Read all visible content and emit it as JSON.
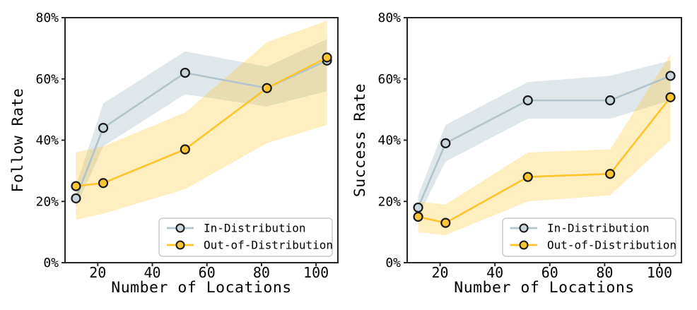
{
  "figure": {
    "background": "#ffffff",
    "text_color": "#000000",
    "spine_color": "#262626",
    "legend_border_color": "#cccccc",
    "legend_background": "rgba(255,255,255,0.92)"
  },
  "chart_data": [
    {
      "type": "line",
      "title": "",
      "xlabel": "Number of Locations",
      "ylabel": "Follow Rate",
      "x": [
        12,
        22,
        52,
        82,
        104
      ],
      "xlim": [
        8,
        108
      ],
      "ylim": [
        0,
        80
      ],
      "xticks": [
        20,
        40,
        60,
        80,
        100
      ],
      "xtick_labels": [
        "20",
        "40",
        "60",
        "80",
        "100"
      ],
      "yticks": [
        0,
        20,
        40,
        60,
        80
      ],
      "ytick_labels": [
        "0%",
        "20%",
        "40%",
        "60%",
        "80%"
      ],
      "grid": false,
      "legend_position": "lower right",
      "series": [
        {
          "name": "In-Distribution",
          "line_color": "#b2c5cc",
          "marker_fill": "#c9d7dc",
          "marker_edge": "#1b1b1b",
          "band_fill": "rgba(178,197,204,0.42)",
          "values": [
            21,
            44,
            62,
            57,
            66
          ],
          "band_low": [
            18,
            38,
            55,
            51,
            56
          ],
          "band_high": [
            25,
            52,
            69,
            64,
            73
          ]
        },
        {
          "name": "Out-of-Distribution",
          "line_color": "#fdc42c",
          "marker_fill": "#fdc531",
          "marker_edge": "#1b1b1b",
          "band_fill": "rgba(253,198,48,0.30)",
          "values": [
            25,
            26,
            37,
            57,
            67
          ],
          "band_low": [
            14,
            16,
            24,
            39,
            45
          ],
          "band_high": [
            36,
            38,
            49,
            72,
            79
          ]
        }
      ]
    },
    {
      "type": "line",
      "title": "",
      "xlabel": "Number of Locations",
      "ylabel": "Success Rate",
      "x": [
        12,
        22,
        52,
        82,
        104
      ],
      "xlim": [
        8,
        108
      ],
      "ylim": [
        0,
        80
      ],
      "xticks": [
        20,
        40,
        60,
        80,
        100
      ],
      "xtick_labels": [
        "20",
        "40",
        "60",
        "80",
        "100"
      ],
      "yticks": [
        0,
        20,
        40,
        60,
        80
      ],
      "ytick_labels": [
        "0%",
        "20%",
        "40%",
        "60%",
        "80%"
      ],
      "grid": false,
      "legend_position": "lower right",
      "series": [
        {
          "name": "In-Distribution",
          "line_color": "#b2c5cc",
          "marker_fill": "#c9d7dc",
          "marker_edge": "#1b1b1b",
          "band_fill": "rgba(178,197,204,0.42)",
          "values": [
            18,
            39,
            53,
            53,
            61
          ],
          "band_low": [
            15,
            33,
            47,
            47,
            53
          ],
          "band_high": [
            22,
            45,
            59,
            61,
            66
          ]
        },
        {
          "name": "Out-of-Distribution",
          "line_color": "#fdc42c",
          "marker_fill": "#fdc531",
          "marker_edge": "#1b1b1b",
          "band_fill": "rgba(253,198,48,0.30)",
          "values": [
            15,
            13,
            28,
            29,
            54
          ],
          "band_low": [
            10,
            9,
            20,
            22,
            40
          ],
          "band_high": [
            20,
            19,
            36,
            37,
            68
          ]
        }
      ]
    }
  ]
}
